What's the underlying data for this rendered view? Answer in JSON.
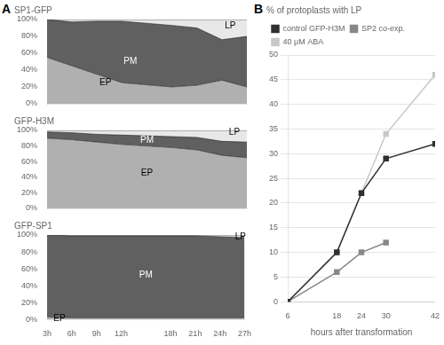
{
  "chart_data": [
    {
      "type": "area",
      "title": "SP1-GFP",
      "stacked": true,
      "x": [
        3,
        6,
        9,
        12,
        18,
        21,
        24,
        27
      ],
      "series": [
        {
          "color": "#b0b0b0",
          "values": [
            55,
            45,
            35,
            25,
            20,
            22,
            28,
            20
          ]
        },
        {
          "color": "#606060",
          "values": [
            45,
            52,
            63,
            73,
            73,
            68,
            48,
            60
          ]
        },
        {
          "color": "#e8e8e8",
          "values": [
            0,
            3,
            2,
            2,
            7,
            10,
            24,
            20
          ]
        }
      ],
      "xlim": [
        3,
        27
      ],
      "xticks": [
        {
          "value": 3,
          "label": "3h"
        },
        {
          "value": 6,
          "label": "6h"
        },
        {
          "value": 9,
          "label": "9h"
        },
        {
          "value": 12,
          "label": "12h"
        },
        {
          "value": 18,
          "label": "18h"
        },
        {
          "value": 21,
          "label": "21h"
        },
        {
          "value": 24,
          "label": "24h"
        },
        {
          "value": 27,
          "label": "27h"
        }
      ],
      "ylim": [
        0,
        100
      ],
      "yticks": [
        {
          "value": 0,
          "label": "0%"
        },
        {
          "value": 20,
          "label": "20%"
        },
        {
          "value": 40,
          "label": "40%"
        },
        {
          "value": 60,
          "label": "60%"
        },
        {
          "value": 80,
          "label": "80%"
        },
        {
          "value": 100,
          "label": "100%"
        }
      ],
      "tick_labels": "y",
      "grid": false,
      "legend": false,
      "annotations": [
        {
          "text": "A"
        },
        {
          "text": "PM",
          "x": 13,
          "y": 50,
          "color": "#ffffff"
        },
        {
          "text": "EP",
          "x": 10,
          "y": 25,
          "color": "#000000"
        },
        {
          "text": "LP",
          "x": 25,
          "y": 92,
          "color": "#000000"
        }
      ]
    },
    {
      "type": "area",
      "title": "GFP-H3M",
      "stacked": true,
      "x": [
        3,
        6,
        9,
        12,
        18,
        21,
        24,
        27
      ],
      "series": [
        {
          "color": "#b0b0b0",
          "values": [
            90,
            88,
            85,
            82,
            78,
            75,
            68,
            65
          ]
        },
        {
          "color": "#606060",
          "values": [
            8,
            9,
            10,
            12,
            14,
            16,
            18,
            20
          ]
        },
        {
          "color": "#e8e8e8",
          "values": [
            2,
            3,
            5,
            6,
            8,
            9,
            14,
            15
          ]
        }
      ],
      "xlim": [
        3,
        27
      ],
      "xticks": [
        {
          "value": 3,
          "label": "3h"
        },
        {
          "value": 6,
          "label": "6h"
        },
        {
          "value": 9,
          "label": "9h"
        },
        {
          "value": 12,
          "label": "12h"
        },
        {
          "value": 18,
          "label": "18h"
        },
        {
          "value": 21,
          "label": "21h"
        },
        {
          "value": 24,
          "label": "24h"
        },
        {
          "value": 27,
          "label": "27h"
        }
      ],
      "ylim": [
        0,
        100
      ],
      "yticks": [
        {
          "value": 0,
          "label": "0%"
        },
        {
          "value": 20,
          "label": "20%"
        },
        {
          "value": 40,
          "label": "40%"
        },
        {
          "value": 60,
          "label": "60%"
        },
        {
          "value": 80,
          "label": "80%"
        },
        {
          "value": 100,
          "label": "100%"
        }
      ],
      "tick_labels": "y",
      "grid": false,
      "legend": false,
      "annotations": [
        {
          "text": "EP",
          "x": 15,
          "y": 45,
          "color": "#000000"
        },
        {
          "text": "PM",
          "x": 15,
          "y": 87,
          "color": "#ffffff"
        },
        {
          "text": "LP",
          "x": 25.5,
          "y": 97,
          "color": "#000000"
        }
      ]
    },
    {
      "type": "area",
      "title": "GFP-SP1",
      "stacked": true,
      "x": [
        3,
        6,
        9,
        12,
        18,
        21,
        24,
        27
      ],
      "series": [
        {
          "color": "#b0b0b0",
          "values": [
            3,
            2,
            2,
            2,
            2,
            2,
            2,
            2
          ]
        },
        {
          "color": "#606060",
          "values": [
            97,
            97,
            97,
            97,
            97,
            97,
            96,
            95
          ]
        },
        {
          "color": "#e8e8e8",
          "values": [
            0,
            1,
            1,
            1,
            1,
            1,
            2,
            3
          ]
        }
      ],
      "xlim": [
        3,
        27
      ],
      "xticks": [
        {
          "value": 3,
          "label": "3h"
        },
        {
          "value": 6,
          "label": "6h"
        },
        {
          "value": 9,
          "label": "9h"
        },
        {
          "value": 12,
          "label": "12h"
        },
        {
          "value": 18,
          "label": "18h"
        },
        {
          "value": 21,
          "label": "21h"
        },
        {
          "value": 24,
          "label": "24h"
        },
        {
          "value": 27,
          "label": "27h"
        }
      ],
      "ylim": [
        0,
        100
      ],
      "yticks": [
        {
          "value": 0,
          "label": "0%"
        },
        {
          "value": 20,
          "label": "20%"
        },
        {
          "value": 40,
          "label": "40%"
        },
        {
          "value": 60,
          "label": "60%"
        },
        {
          "value": 80,
          "label": "80%"
        },
        {
          "value": 100,
          "label": "100%"
        }
      ],
      "grid": false,
      "legend": false,
      "annotations": [
        {
          "text": "PM",
          "x": 15,
          "y": 52,
          "color": "#ffffff"
        },
        {
          "text": "EP",
          "x": 4.5,
          "y": 1.5,
          "color": "#000000"
        },
        {
          "text": "LP",
          "x": 26.5,
          "y": 98,
          "color": "#000000"
        }
      ]
    },
    {
      "type": "line",
      "title": "% of protoplasts with LP",
      "x_label": "hours after transformation",
      "x": [
        6,
        18,
        24,
        30,
        42
      ],
      "series": [
        {
          "name": "control GFP-H3M",
          "color": "#303030",
          "marker": "square",
          "values": [
            0,
            10,
            22,
            29,
            32
          ]
        },
        {
          "name": "SP2 co-exp.",
          "color": "#888888",
          "marker": "square",
          "x": [
            6,
            18,
            24,
            30
          ],
          "values": [
            0,
            6,
            10,
            12
          ]
        },
        {
          "name": "40 μM ABA",
          "color": "#c8c8c8",
          "marker": "square",
          "values": [
            0,
            10,
            22,
            34,
            46
          ]
        }
      ],
      "xlim": [
        6,
        42
      ],
      "xticks": [
        6,
        18,
        24,
        30,
        42
      ],
      "ylim": [
        0,
        50
      ],
      "yticks": [
        0,
        5,
        10,
        15,
        20,
        25,
        30,
        35,
        40,
        45,
        50
      ],
      "grid": true,
      "legend": "upper left",
      "annotations": [
        {
          "text": "B"
        }
      ]
    }
  ]
}
